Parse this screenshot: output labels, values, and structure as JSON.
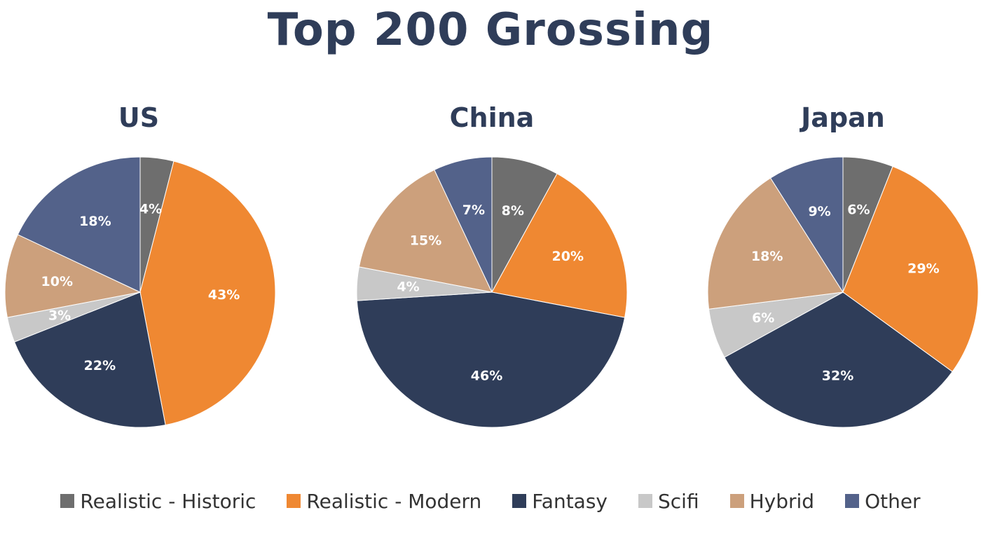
{
  "title": "Top 200 Grossing",
  "legend": [
    {
      "label": "Realistic - Historic",
      "color": "#6e6e6e"
    },
    {
      "label": "Realistic - Modern",
      "color": "#ef8832"
    },
    {
      "label": "Fantasy",
      "color": "#2f3d59"
    },
    {
      "label": "Scifi",
      "color": "#c8c8c8"
    },
    {
      "label": "Hybrid",
      "color": "#cca07c"
    },
    {
      "label": "Other",
      "color": "#53628a"
    }
  ],
  "chart_data": [
    {
      "type": "pie",
      "title": "US",
      "categories": [
        "Realistic - Historic",
        "Realistic - Modern",
        "Fantasy",
        "Scifi",
        "Hybrid",
        "Other"
      ],
      "values": [
        4,
        43,
        22,
        3,
        10,
        18
      ],
      "labels": [
        "4%",
        "43%",
        "22%",
        "3%",
        "10%",
        "18%"
      ]
    },
    {
      "type": "pie",
      "title": "China",
      "categories": [
        "Realistic - Historic",
        "Realistic - Modern",
        "Fantasy",
        "Scifi",
        "Hybrid",
        "Other"
      ],
      "values": [
        8,
        20,
        46,
        4,
        15,
        7
      ],
      "labels": [
        "8%",
        "20%",
        "46%",
        "4%",
        "15%",
        "7%"
      ]
    },
    {
      "type": "pie",
      "title": "Japan",
      "categories": [
        "Realistic - Historic",
        "Realistic - Modern",
        "Fantasy",
        "Scifi",
        "Hybrid",
        "Other"
      ],
      "values": [
        6,
        29,
        32,
        6,
        18,
        9
      ],
      "labels": [
        "6%",
        "29%",
        "32%",
        "6%",
        "18%",
        "9%"
      ]
    }
  ]
}
